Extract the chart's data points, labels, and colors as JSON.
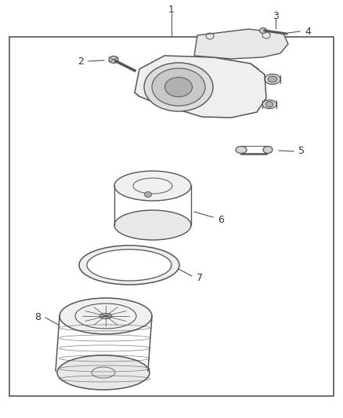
{
  "bg_color": "#ffffff",
  "border_color": "#555555",
  "line_color": "#555555",
  "text_color": "#333333",
  "figsize": [
    4.38,
    5.33
  ],
  "dpi": 100
}
